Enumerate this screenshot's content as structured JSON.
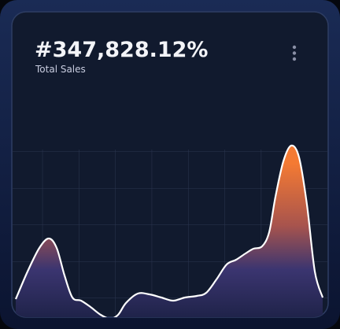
{
  "chart_data": {
    "type": "area",
    "title": "#347,828.12%",
    "subtitle": "Total Sales",
    "x": [
      0,
      15,
      30,
      42,
      52,
      62,
      72,
      83,
      95,
      108,
      120,
      130,
      140,
      155,
      170,
      185,
      200,
      215,
      230,
      242,
      255,
      268,
      280,
      292,
      302,
      313,
      322,
      330,
      340,
      350,
      360,
      370,
      380,
      390
    ],
    "series": [
      {
        "name": "Total Sales",
        "color": "#ffffff",
        "values": [
          20,
          55,
          85,
          97,
          85,
          50,
          22,
          18,
          10,
          0,
          -5,
          0,
          15,
          27,
          26,
          22,
          18,
          22,
          24,
          28,
          45,
          64,
          70,
          78,
          84,
          87,
          105,
          150,
          195,
          215,
          200,
          140,
          55,
          22
        ]
      }
    ],
    "xlim": [
      0,
      390
    ],
    "ylim": [
      0,
      220
    ]
  }
}
